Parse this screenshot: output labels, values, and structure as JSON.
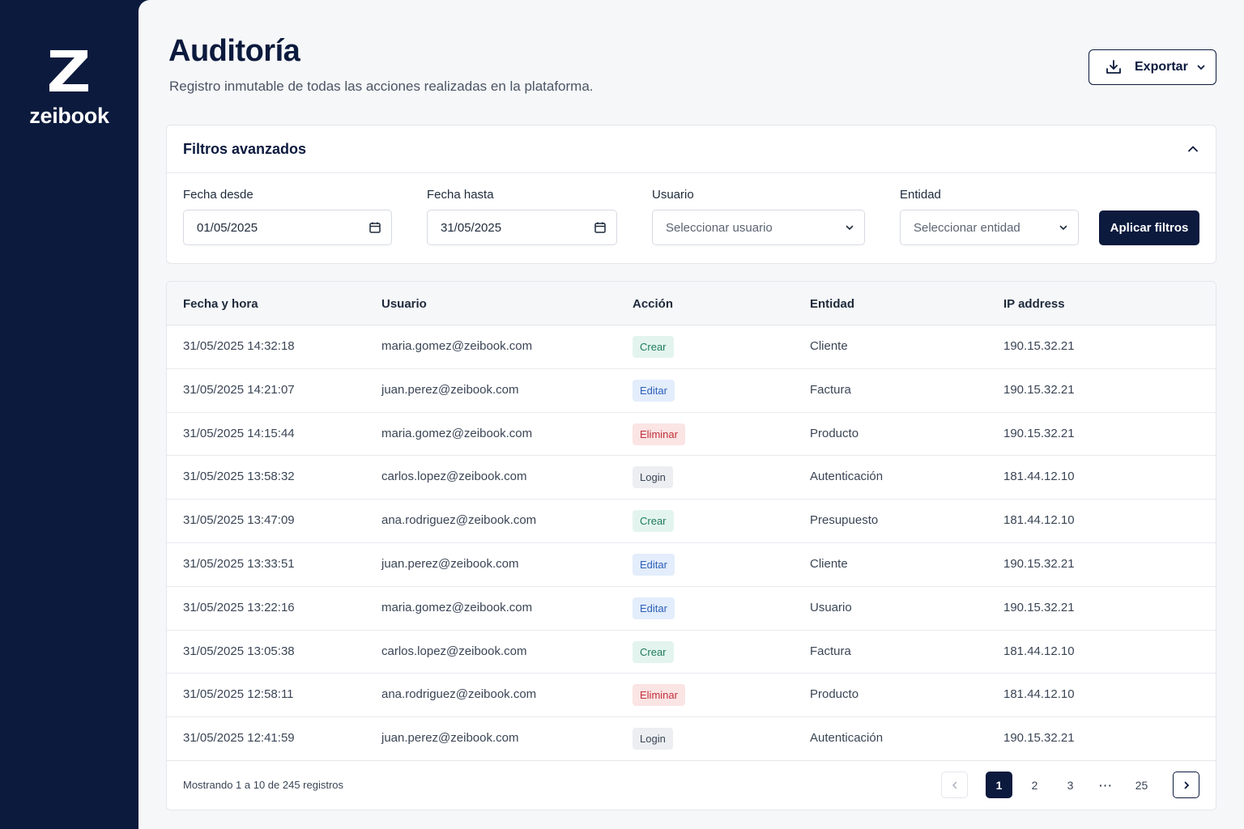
{
  "brand": {
    "name": "zeibook",
    "logo_letter": "Z"
  },
  "header": {
    "title": "Auditoría",
    "subtitle": "Registro inmutable de todas las acciones realizadas en la plataforma.",
    "export_label": "Exportar"
  },
  "filters": {
    "title": "Filtros avanzados",
    "date_from": {
      "label": "Fecha desde",
      "value": "01/05/2025"
    },
    "date_to": {
      "label": "Fecha hasta",
      "value": "31/05/2025"
    },
    "user": {
      "label": "Usuario",
      "placeholder": "Seleccionar usuario"
    },
    "entity": {
      "label": "Entidad",
      "placeholder": "Seleccionar entidad"
    },
    "apply_label": "Aplicar filtros"
  },
  "table": {
    "columns": [
      "Fecha y hora",
      "Usuario",
      "Acción",
      "Entidad",
      "IP address"
    ],
    "rows": [
      {
        "datetime": "31/05/2025 14:32:18",
        "user": "maria.gomez@zeibook.com",
        "action": "Crear",
        "entity": "Cliente",
        "ip": "190.15.32.21"
      },
      {
        "datetime": "31/05/2025 14:21:07",
        "user": "juan.perez@zeibook.com",
        "action": "Editar",
        "entity": "Factura",
        "ip": "190.15.32.21"
      },
      {
        "datetime": "31/05/2025 14:15:44",
        "user": "maria.gomez@zeibook.com",
        "action": "Eliminar",
        "entity": "Producto",
        "ip": "190.15.32.21"
      },
      {
        "datetime": "31/05/2025 13:58:32",
        "user": "carlos.lopez@zeibook.com",
        "action": "Login",
        "entity": "Autenticación",
        "ip": "181.44.12.10"
      },
      {
        "datetime": "31/05/2025 13:47:09",
        "user": "ana.rodriguez@zeibook.com",
        "action": "Crear",
        "entity": "Presupuesto",
        "ip": "181.44.12.10"
      },
      {
        "datetime": "31/05/2025 13:33:51",
        "user": "juan.perez@zeibook.com",
        "action": "Editar",
        "entity": "Cliente",
        "ip": "190.15.32.21"
      },
      {
        "datetime": "31/05/2025 13:22:16",
        "user": "maria.gomez@zeibook.com",
        "action": "Editar",
        "entity": "Usuario",
        "ip": "190.15.32.21"
      },
      {
        "datetime": "31/05/2025 13:05:38",
        "user": "carlos.lopez@zeibook.com",
        "action": "Crear",
        "entity": "Factura",
        "ip": "181.44.12.10"
      },
      {
        "datetime": "31/05/2025 12:58:11",
        "user": "ana.rodriguez@zeibook.com",
        "action": "Eliminar",
        "entity": "Producto",
        "ip": "181.44.12.10"
      },
      {
        "datetime": "31/05/2025 12:41:59",
        "user": "juan.perez@zeibook.com",
        "action": "Login",
        "entity": "Autenticación",
        "ip": "190.15.32.21"
      }
    ],
    "footer_text": "Mostrando 1 a 10 de 245 registros"
  },
  "pagination": {
    "pages": [
      "1",
      "2",
      "3"
    ],
    "ellipsis": "···",
    "last": "25",
    "prev_icon": "chevron-left-icon",
    "next_icon": "chevron-right-icon"
  },
  "badge_colors": {
    "Crear": {
      "bg": "#e3f4ee",
      "fg": "#1f7a5c"
    },
    "Editar": {
      "bg": "#e3edfb",
      "fg": "#2c5fb8"
    },
    "Eliminar": {
      "bg": "#fbe4e4",
      "fg": "#c2303a"
    },
    "Login": {
      "bg": "#eceef1",
      "fg": "#3a4555"
    }
  },
  "colors": {
    "primary": "#0b1a3d",
    "background": "#f6f7f9"
  }
}
